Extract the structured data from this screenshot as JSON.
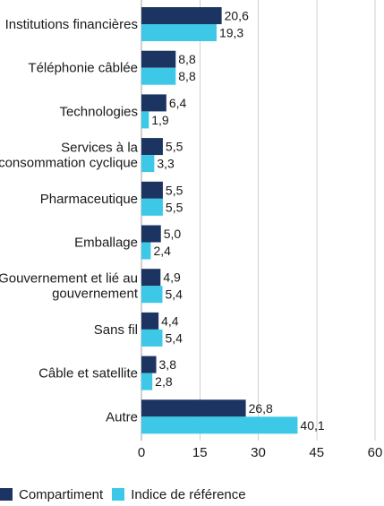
{
  "colors": {
    "compartiment": "#1b3461",
    "indice": "#3dc8e8",
    "grid": "#cfcfcf",
    "axis": "#a0a0a0",
    "text": "#1a1a1a"
  },
  "legend": {
    "items": [
      {
        "label": "Compartiment",
        "color": "#1b3461"
      },
      {
        "label": "Indice de référence",
        "color": "#3dc8e8"
      }
    ]
  },
  "chart_data": {
    "type": "bar",
    "orientation": "horizontal",
    "categories": [
      [
        "Institutions financières"
      ],
      [
        "Téléphonie câblée"
      ],
      [
        "Technologies"
      ],
      [
        "Services à la",
        "consommation cyclique"
      ],
      [
        "Pharmaceutique"
      ],
      [
        "Emballage"
      ],
      [
        "Gouvernement et lié au",
        "gouvernement"
      ],
      [
        "Sans fil"
      ],
      [
        "Câble et satellite"
      ],
      [
        "Autre"
      ]
    ],
    "series": [
      {
        "name": "Compartiment",
        "values": [
          20.6,
          8.8,
          6.4,
          5.5,
          5.5,
          5.0,
          4.9,
          4.4,
          3.8,
          26.8
        ],
        "labels": [
          "20,6",
          "8,8",
          "6,4",
          "5,5",
          "5,5",
          "5,0",
          "4,9",
          "4,4",
          "3,8",
          "26,8"
        ]
      },
      {
        "name": "Indice de référence",
        "values": [
          19.3,
          8.8,
          1.9,
          3.3,
          5.5,
          2.4,
          5.4,
          5.4,
          2.8,
          40.1
        ],
        "labels": [
          "19,3",
          "8,8",
          "1,9",
          "3,3",
          "5,5",
          "2,4",
          "5,4",
          "5,4",
          "2,8",
          "40,1"
        ]
      }
    ],
    "xlim": [
      0,
      60
    ],
    "xticks": [
      0,
      15,
      30,
      45,
      60
    ],
    "xtick_labels": [
      "0",
      "15",
      "30",
      "45",
      "60"
    ],
    "grid": true,
    "legend_position": "bottom-left"
  }
}
